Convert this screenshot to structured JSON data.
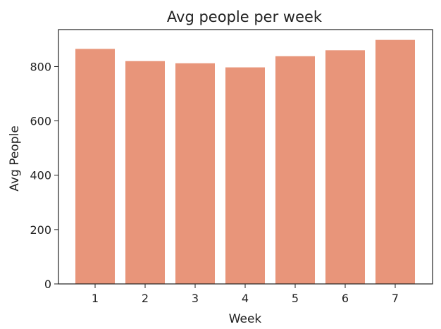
{
  "chart_data": {
    "type": "bar",
    "title": "Avg people per week",
    "xlabel": "Week",
    "ylabel": "Avg People",
    "categories": [
      "1",
      "2",
      "3",
      "4",
      "5",
      "6",
      "7"
    ],
    "values": [
      865,
      820,
      812,
      797,
      838,
      860,
      898
    ],
    "ylim": [
      0,
      936
    ],
    "yticks": [
      "0",
      "200",
      "400",
      "600",
      "800"
    ],
    "bar_color": "#e8957a",
    "grid": false,
    "legend": "none"
  }
}
